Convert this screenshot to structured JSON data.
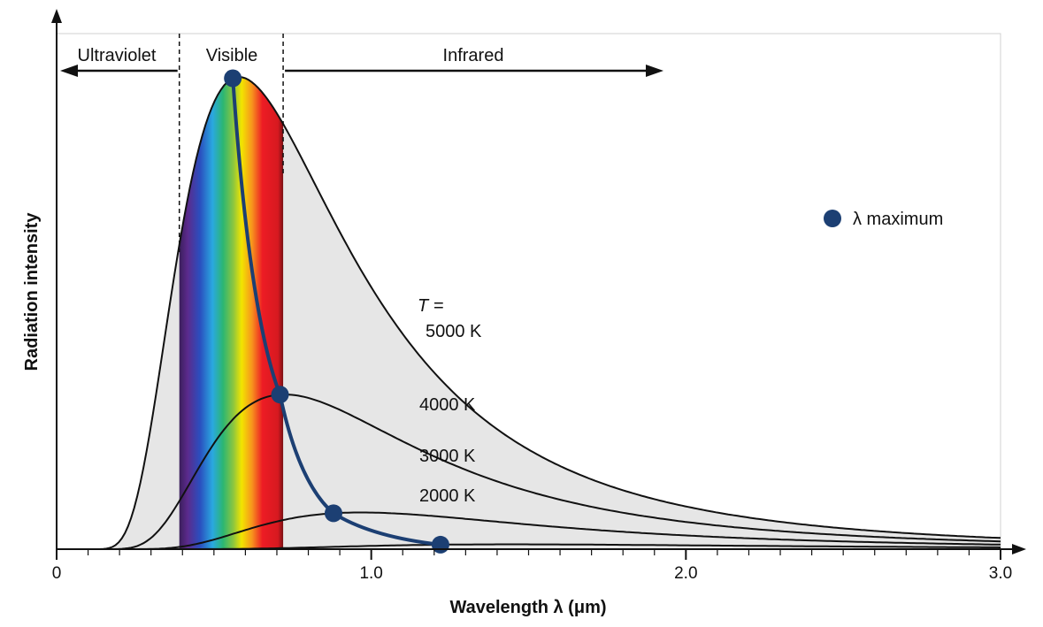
{
  "chart_data": {
    "type": "line",
    "xlabel": "Wavelength λ (μm)",
    "ylabel": "Radiation intensity",
    "xlim": [
      0,
      3.0
    ],
    "x_tick_labels": [
      "0",
      "1.0",
      "2.0",
      "3.0"
    ],
    "x_ticks": [
      0,
      1.0,
      2.0,
      3.0
    ],
    "regions": {
      "ultraviolet": "Ultraviolet",
      "visible": "Visible",
      "infrared": "Infrared",
      "visible_range": [
        0.39,
        0.72
      ]
    },
    "series": [
      {
        "name": "5000 K",
        "temperature": 5000,
        "peak_wavelength": 0.56
      },
      {
        "name": "4000 K",
        "temperature": 4000,
        "peak_wavelength": 0.71
      },
      {
        "name": "3000 K",
        "temperature": 3000,
        "peak_wavelength": 0.88
      },
      {
        "name": "2000 K",
        "temperature": 2000,
        "peak_wavelength": 1.22
      }
    ],
    "curve_label_prefix": "T =",
    "legend": {
      "label": "λ maximum",
      "position": "right"
    },
    "colors": {
      "peak_marker": "#1c3f73",
      "fill": "#e6e6e6",
      "curve": "#111111"
    }
  }
}
